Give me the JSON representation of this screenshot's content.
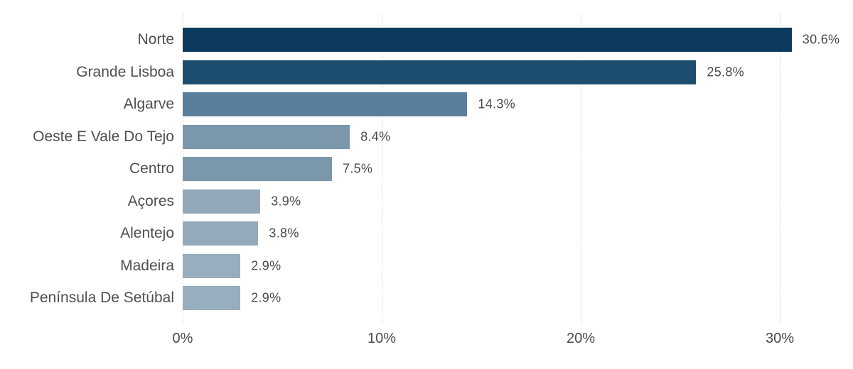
{
  "chart_data": {
    "type": "bar",
    "orientation": "horizontal",
    "title": "",
    "xlabel": "",
    "ylabel": "",
    "categories": [
      "Norte",
      "Grande Lisboa",
      "Algarve",
      "Oeste E Vale Do Tejo",
      "Centro",
      "Açores",
      "Alentejo",
      "Madeira",
      "Península De Setúbal"
    ],
    "values": [
      30.6,
      25.8,
      14.3,
      8.4,
      7.5,
      3.9,
      3.8,
      2.9,
      2.9
    ],
    "value_labels": [
      "30.6%",
      "25.8%",
      "14.3%",
      "8.4%",
      "7.5%",
      "3.9%",
      "3.8%",
      "2.9%",
      "2.9%"
    ],
    "bar_colors": [
      "#0B3A5E",
      "#1D4E70",
      "#5A7F9C",
      "#7A97AC",
      "#7A97AC",
      "#93A9BA",
      "#94AABB",
      "#98ADBD",
      "#98ADBD"
    ],
    "x_ticks": [
      "0%",
      "10%",
      "20%",
      "30%"
    ],
    "x_tick_values": [
      0,
      10,
      20,
      30
    ],
    "xlim": [
      0,
      30
    ],
    "grid": "vertical-dotted",
    "legend": "none"
  },
  "colors": {
    "background": "#FFFFFF",
    "gridline": "#D2D2D2",
    "category_label": "#4F4F4F",
    "value_label": "#4A4A4A",
    "axis_label": "#4A4A4A"
  }
}
